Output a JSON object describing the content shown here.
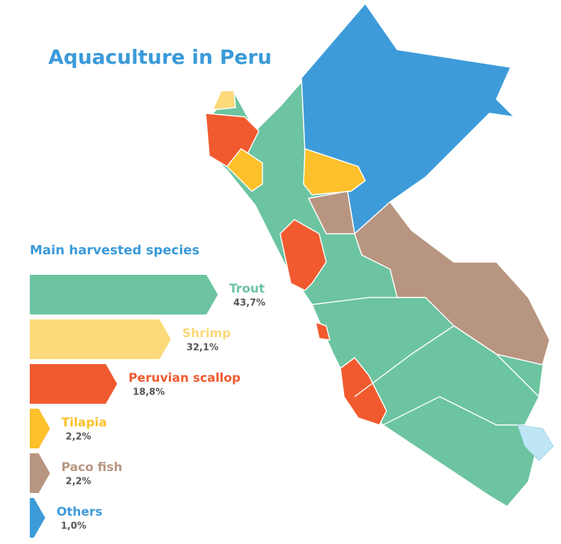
{
  "chart_data": {
    "type": "bar",
    "title": "Aquaculture in Peru",
    "subtitle": "Main harvested species",
    "categories": [
      "Trout",
      "Shrimp",
      "Peruvian scallop",
      "Tilapia",
      "Paco fish",
      "Others"
    ],
    "values": [
      43.7,
      32.1,
      18.8,
      2.2,
      2.2,
      1.0
    ],
    "value_labels": [
      "43,7%",
      "32,1%",
      "18,8%",
      "2,2%",
      "2,2%",
      "1,0%"
    ],
    "colors": [
      "#6cc4a1",
      "#fcd97a",
      "#f15a2f",
      "#fcc02a",
      "#b89580",
      "#3e9bd9"
    ]
  }
}
